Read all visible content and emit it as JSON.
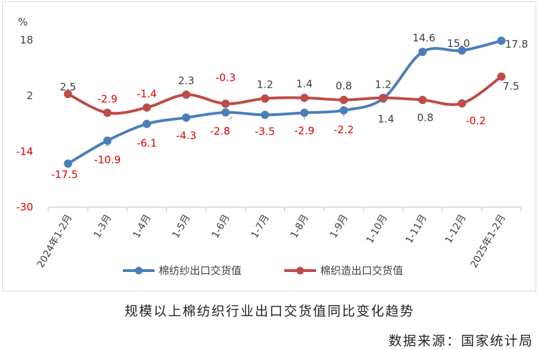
{
  "chart_data": {
    "type": "line",
    "title": "规模以上棉纺织行业出口交货值同比变化趋势",
    "source": "数据来源：国家统计局",
    "ylabel": "%",
    "ylim": [
      -30,
      18
    ],
    "yticks": [
      "18",
      "2",
      "-14",
      "-30"
    ],
    "categories": [
      "2024年1-2月",
      "1-3月",
      "1-4月",
      "1-5月",
      "1-6月",
      "1-7月",
      "1-8月",
      "1-9月",
      "1-10月",
      "1-11月",
      "1-12月",
      "2025年1-2月"
    ],
    "legend_position": "bottom",
    "series": [
      {
        "name": "棉纺纱出口交货值",
        "color": "#4a7ebb",
        "values": [
          -17.5,
          -10.9,
          -6.1,
          -4.3,
          -2.8,
          -3.5,
          -2.9,
          -2.2,
          1.2,
          14.6,
          15.0,
          17.8
        ],
        "labels": [
          "-17.5",
          "-10.9",
          "-6.1",
          "-4.3",
          "-2.8",
          "-3.5",
          "-2.9",
          "-2.2",
          "1.2",
          "14.6",
          "15.0",
          "17.8"
        ]
      },
      {
        "name": "棉织造出口交货值",
        "color": "#be4b48",
        "values": [
          2.5,
          -2.9,
          -1.4,
          2.3,
          -0.3,
          1.2,
          1.4,
          0.8,
          1.4,
          0.8,
          -0.2,
          7.5
        ],
        "labels": [
          "2.5",
          "-2.9",
          "-1.4",
          "2.3",
          "-0.3",
          "1.2",
          "1.4",
          "0.8",
          "1.4",
          "0.8",
          "-0.2",
          "7.5"
        ]
      }
    ]
  },
  "label_colors": {
    "dark": "#404040",
    "red": "#e00000"
  }
}
